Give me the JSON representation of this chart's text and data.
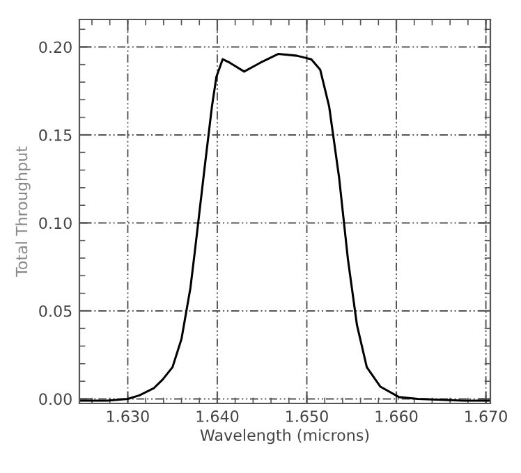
{
  "chart_data": {
    "type": "line",
    "xlabel": "Wavelength (microns)",
    "ylabel": "Total Throughput",
    "xlim": [
      1.6246,
      1.6705
    ],
    "ylim": [
      -0.0026,
      0.2156
    ],
    "xticks": [
      {
        "value": 1.63,
        "label": "1.630"
      },
      {
        "value": 1.64,
        "label": "1.640"
      },
      {
        "value": 1.65,
        "label": "1.650"
      },
      {
        "value": 1.66,
        "label": "1.660"
      },
      {
        "value": 1.67,
        "label": "1.670"
      }
    ],
    "yticks": [
      {
        "value": 0.0,
        "label": "0.00"
      },
      {
        "value": 0.05,
        "label": "0.05"
      },
      {
        "value": 0.1,
        "label": "0.10"
      },
      {
        "value": 0.15,
        "label": "0.15"
      },
      {
        "value": 0.2,
        "label": "0.20"
      }
    ],
    "grid": true,
    "marker": "none",
    "line_style": "solid",
    "series": [
      {
        "color": "#000000",
        "x": [
          1.6246,
          1.6277,
          1.63,
          1.6313,
          1.6329,
          1.6339,
          1.635,
          1.636,
          1.637,
          1.6375,
          1.6386,
          1.6394,
          1.6399,
          1.6406,
          1.6414,
          1.643,
          1.6448,
          1.6468,
          1.6489,
          1.6505,
          1.6515,
          1.6525,
          1.6536,
          1.6546,
          1.6556,
          1.6567,
          1.6582,
          1.6603,
          1.6624,
          1.6675,
          1.6704
        ],
        "values": [
          -0.001,
          -0.001,
          0.0,
          0.002,
          0.006,
          0.011,
          0.018,
          0.034,
          0.063,
          0.084,
          0.132,
          0.166,
          0.183,
          0.193,
          0.191,
          0.186,
          0.191,
          0.196,
          0.195,
          0.193,
          0.187,
          0.166,
          0.126,
          0.079,
          0.042,
          0.018,
          0.007,
          0.001,
          0.0,
          -0.001,
          -0.001
        ]
      }
    ]
  }
}
